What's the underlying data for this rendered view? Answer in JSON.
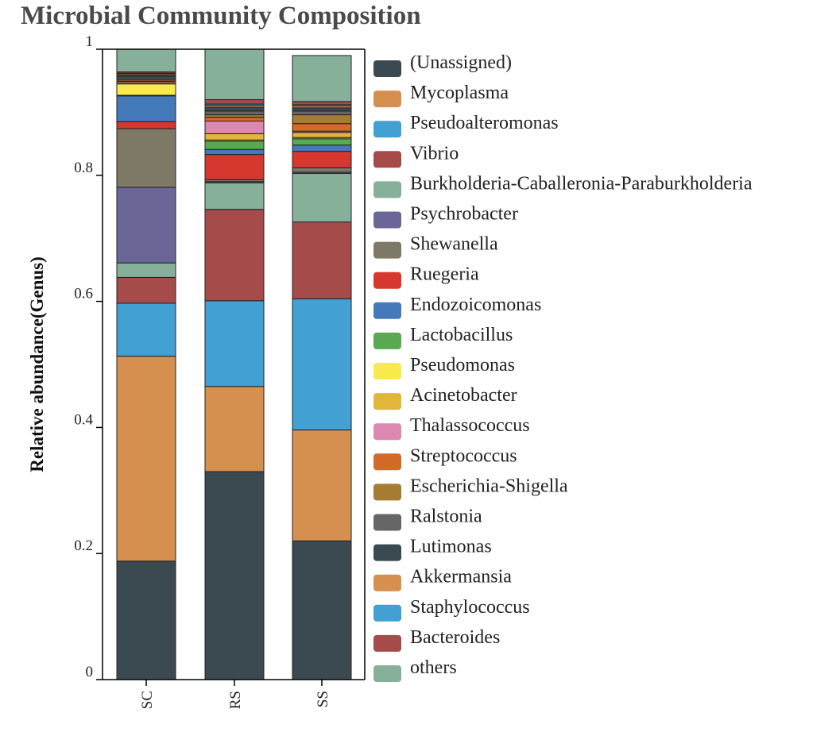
{
  "chart_data": {
    "type": "bar",
    "stacked": true,
    "title": "Microbial Community Composition",
    "xlabel": "",
    "ylabel": "Relative abundance(Genus)",
    "ylim": [
      0,
      1
    ],
    "yticks": [
      "0",
      "0.2",
      "0.4",
      "0.6",
      "0.8",
      "1"
    ],
    "categories": [
      "SC",
      "RS",
      "SS"
    ],
    "grid": false,
    "legend_position": "right",
    "series": [
      {
        "name": "(Unassigned)",
        "color": "#3b4a51",
        "values": [
          0.188,
          0.33,
          0.22
        ]
      },
      {
        "name": "Mycoplasma",
        "color": "#d59050",
        "values": [
          0.325,
          0.135,
          0.176
        ]
      },
      {
        "name": "Pseudoalteromonas",
        "color": "#42a0d2",
        "values": [
          0.084,
          0.136,
          0.208
        ]
      },
      {
        "name": "Vibrio",
        "color": "#a54b4a",
        "values": [
          0.041,
          0.145,
          0.122
        ]
      },
      {
        "name": "Burkholderia-Caballeronia-Paraburkholderia",
        "color": "#87b09a",
        "values": [
          0.023,
          0.042,
          0.077
        ]
      },
      {
        "name": "Psychrobacter",
        "color": "#6a6698",
        "values": [
          0.12,
          0.002,
          0.002
        ]
      },
      {
        "name": "Shewanella",
        "color": "#7e7867",
        "values": [
          0.093,
          0.003,
          0.007
        ]
      },
      {
        "name": "Ruegeria",
        "color": "#d6382f",
        "values": [
          0.011,
          0.04,
          0.026
        ]
      },
      {
        "name": "Endozoicomonas",
        "color": "#4479ba",
        "values": [
          0.041,
          0.008,
          0.01
        ]
      },
      {
        "name": "Lactobacillus",
        "color": "#5aa952",
        "values": [
          0.001,
          0.013,
          0.01
        ]
      },
      {
        "name": "Pseudomonas",
        "color": "#f8ea4c",
        "values": [
          0.018,
          0.002,
          0.002
        ]
      },
      {
        "name": "Acinetobacter",
        "color": "#e0b63b",
        "values": [
          0.002,
          0.01,
          0.008
        ]
      },
      {
        "name": "Thalassococcus",
        "color": "#dd88b1",
        "values": [
          0.002,
          0.02,
          0.002
        ]
      },
      {
        "name": "Streptococcus",
        "color": "#d36a2a",
        "values": [
          0.002,
          0.006,
          0.012
        ]
      },
      {
        "name": "Escherichia-Shigella",
        "color": "#a57c32",
        "values": [
          0.002,
          0.004,
          0.014
        ]
      },
      {
        "name": "Ralstonia",
        "color": "#666666",
        "values": [
          0.003,
          0.006,
          0.006
        ]
      },
      {
        "name": "Lutimonas",
        "color": "#3b4a51",
        "values": [
          0.003,
          0.006,
          0.005
        ]
      },
      {
        "name": "Akkermansia",
        "color": "#d59050",
        "values": [
          0.002,
          0.003,
          0.003
        ]
      },
      {
        "name": "Staphylococcus",
        "color": "#42a0d2",
        "values": [
          0.001,
          0.002,
          0.002
        ]
      },
      {
        "name": "Bacteroides",
        "color": "#a54b4a",
        "values": [
          0.002,
          0.007,
          0.005
        ]
      },
      {
        "name": "others",
        "color": "#87b09a",
        "values": [
          0.036,
          0.08,
          0.073
        ]
      }
    ]
  }
}
